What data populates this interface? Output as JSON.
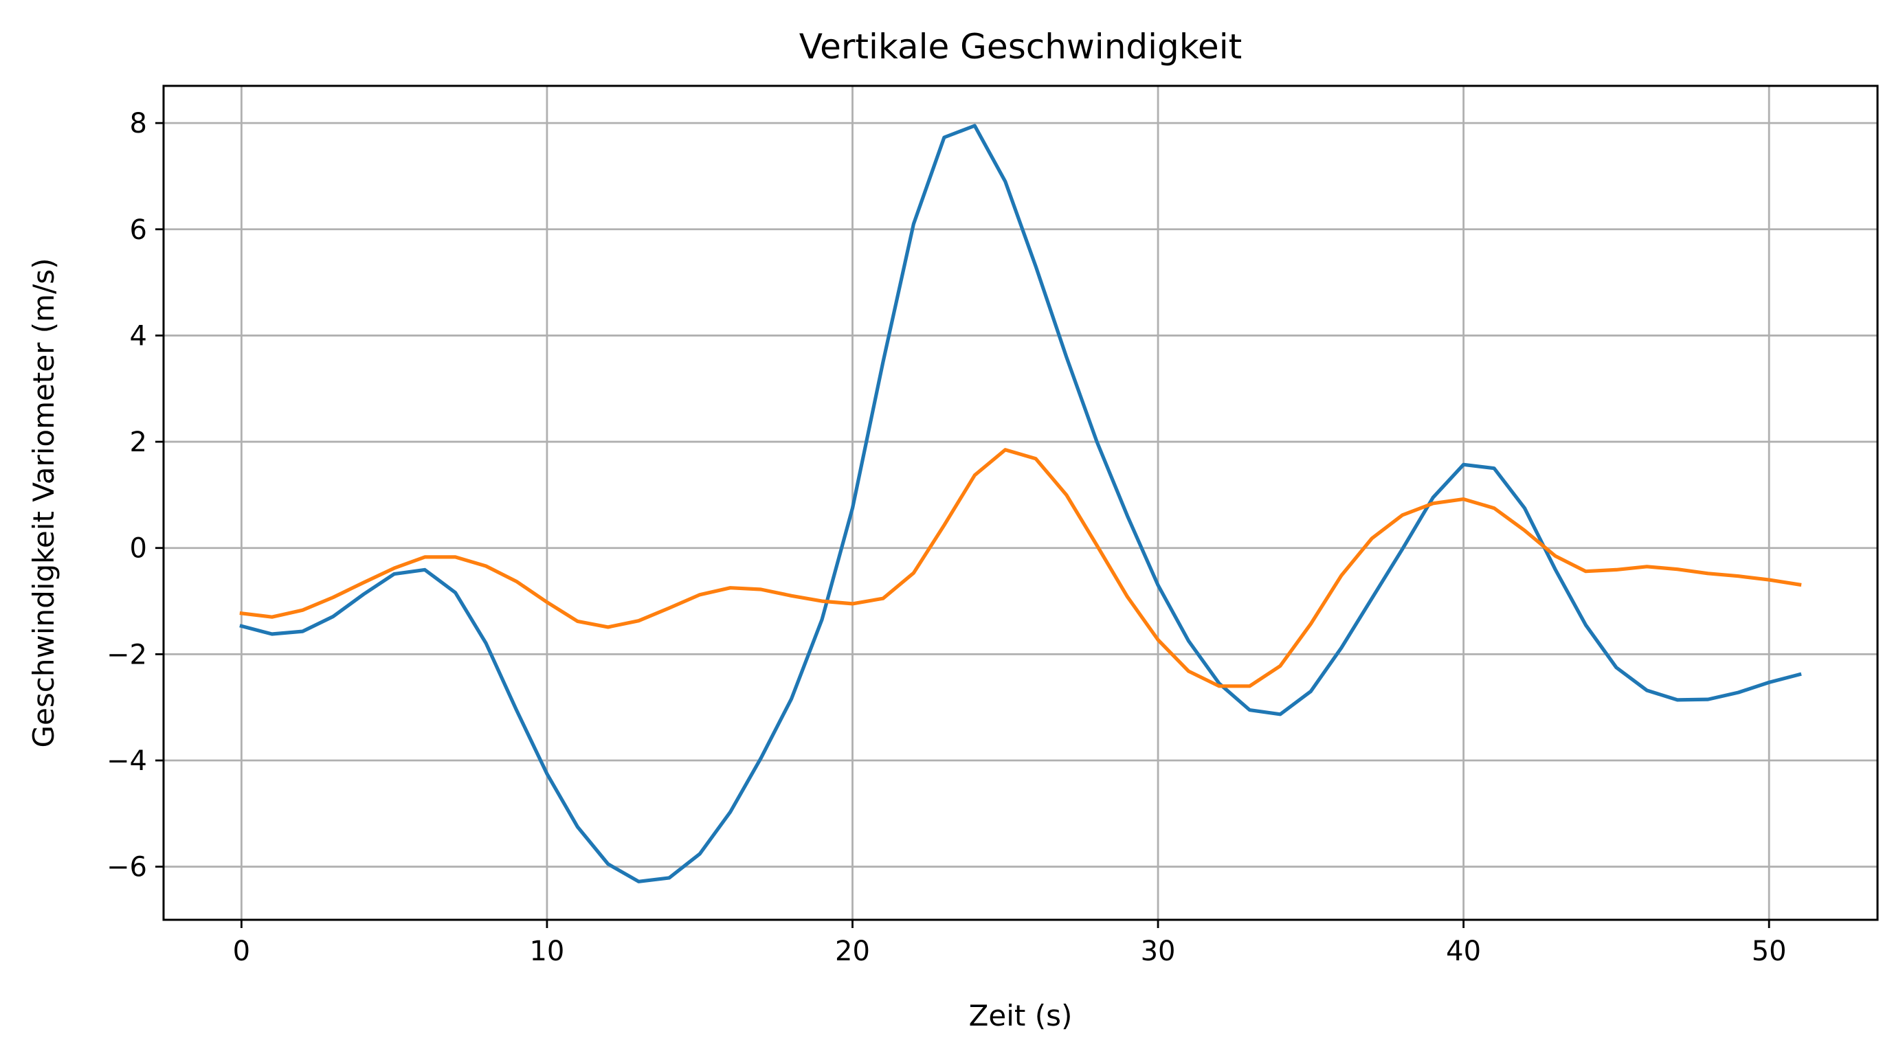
{
  "chart_data": {
    "type": "line",
    "title": "Vertikale Geschwindigkeit",
    "xlabel": "Zeit (s)",
    "ylabel": "Geschwindigkeit Variometer (m/s)",
    "xlim": [
      -2.55,
      53.55
    ],
    "ylim": [
      -7.0,
      8.7
    ],
    "grid": true,
    "x_ticks": [
      0,
      10,
      20,
      30,
      40,
      50
    ],
    "x_tick_labels": [
      "0",
      "10",
      "20",
      "30",
      "40",
      "50"
    ],
    "y_ticks": [
      -6,
      -4,
      -2,
      0,
      2,
      4,
      6,
      8
    ],
    "y_tick_labels": [
      "−6",
      "−4",
      "−2",
      "0",
      "2",
      "4",
      "6",
      "8"
    ],
    "x": [
      0,
      1,
      2,
      3,
      4,
      5,
      6,
      7,
      8,
      9,
      10,
      11,
      12,
      13,
      14,
      15,
      16,
      17,
      18,
      19,
      20,
      21,
      22,
      23,
      24,
      25,
      26,
      27,
      28,
      29,
      30,
      31,
      32,
      33,
      34,
      35,
      36,
      37,
      38,
      39,
      40,
      41,
      42,
      43,
      44,
      45,
      46,
      47,
      48,
      49,
      50,
      51
    ],
    "series": [
      {
        "color": "#1f77b4",
        "values": [
          -1.47,
          -1.62,
          -1.57,
          -1.29,
          -0.87,
          -0.49,
          -0.41,
          -0.84,
          -1.79,
          -3.05,
          -4.25,
          -5.25,
          -5.95,
          -6.28,
          -6.21,
          -5.76,
          -4.97,
          -3.96,
          -2.84,
          -1.35,
          0.75,
          3.5,
          6.1,
          7.73,
          7.95,
          6.9,
          5.3,
          3.6,
          2.0,
          0.6,
          -0.7,
          -1.75,
          -2.55,
          -3.05,
          -3.13,
          -2.7,
          -1.88,
          -0.95,
          -0.02,
          0.95,
          1.57,
          1.5,
          0.75,
          -0.4,
          -1.45,
          -2.25,
          -2.68,
          -2.86,
          -2.85,
          -2.72,
          -2.53,
          -2.38
        ]
      },
      {
        "color": "#ff7f0e",
        "values": [
          -1.23,
          -1.3,
          -1.17,
          -0.93,
          -0.65,
          -0.38,
          -0.17,
          -0.17,
          -0.34,
          -0.63,
          -1.02,
          -1.38,
          -1.49,
          -1.37,
          -1.13,
          -0.88,
          -0.75,
          -0.78,
          -0.9,
          -1.0,
          -1.05,
          -0.95,
          -0.47,
          0.43,
          1.37,
          1.85,
          1.68,
          1.0,
          0.05,
          -0.92,
          -1.73,
          -2.32,
          -2.6,
          -2.6,
          -2.22,
          -1.43,
          -0.52,
          0.18,
          0.62,
          0.84,
          0.92,
          0.75,
          0.33,
          -0.15,
          -0.44,
          -0.41,
          -0.35,
          -0.4,
          -0.48,
          -0.53,
          -0.6,
          -0.69
        ]
      }
    ]
  }
}
